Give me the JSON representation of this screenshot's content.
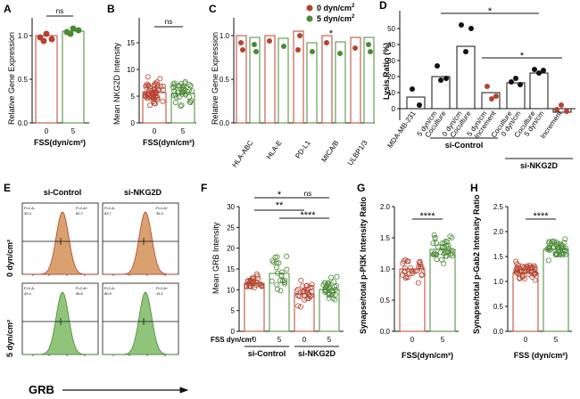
{
  "panels": [
    "A",
    "B",
    "C",
    "D",
    "E",
    "F",
    "G",
    "H"
  ],
  "colors": {
    "red": "#b5432f",
    "green": "#4a8a35",
    "orange": "#d9a070",
    "lightgreen": "#8fc47a"
  },
  "chart_data": [
    {
      "id": "A",
      "type": "bar",
      "categories": [
        "0",
        "5"
      ],
      "ylabel": "Relative Gene Expression",
      "xlabel": "FSS(dyn/cm²)",
      "values": [
        1.0,
        1.05
      ],
      "errors": [
        0.04,
        0.03
      ],
      "ylim": [
        0,
        1.2
      ],
      "yticks": [
        "0.0",
        "0.5",
        "1.0"
      ],
      "points": [
        [
          0.96,
          1.0,
          1.03,
          0.98
        ],
        [
          1.03,
          1.07,
          1.05,
          1.08
        ]
      ],
      "annotation": "ns"
    },
    {
      "id": "B",
      "type": "bar",
      "categories": [
        "0",
        "5"
      ],
      "ylabel": "Mean NKG2D Intensity",
      "xlabel": "FSS(dyn/cm²)",
      "values": [
        5.6,
        5.5
      ],
      "errors": [
        0.3,
        0.3
      ],
      "ylim": [
        0,
        16
      ],
      "yticks": [
        "0",
        "5",
        "10",
        "15"
      ],
      "annotation": "ns"
    },
    {
      "id": "C",
      "type": "bar",
      "categories": [
        "HLA-ABC",
        "HLA-E",
        "PD-L1",
        "MICA/B",
        "ULBP1/3"
      ],
      "ylabel": "Relative Gene Expression",
      "series": [
        {
          "name": "0 dyn/cm²",
          "values": [
            1.0,
            1.0,
            1.05,
            1.0,
            0.98
          ]
        },
        {
          "name": "5 dyn/cm²",
          "values": [
            0.98,
            0.97,
            0.92,
            0.93,
            0.98
          ]
        }
      ],
      "ylim": [
        0,
        1.2
      ],
      "yticks": [
        "0.0",
        "0.5",
        "1.0"
      ],
      "legend": [
        "0 dyn/cm",
        "5 dyn/cm"
      ],
      "annotation": "*"
    },
    {
      "id": "D",
      "type": "bar",
      "ylabel": "Lysis Ratio (%)",
      "ylim": [
        -10,
        60
      ],
      "yticks": [
        "0",
        "10",
        "20",
        "30",
        "40",
        "50"
      ],
      "categories": [
        "MDA-MB-231",
        "Coculture 5 dyn/cm2",
        "Coculture 0 dyn/cm2",
        "Increment",
        "Coculture 5 dyn/cm2",
        "Coculture 0 dyn/cm2",
        "Increment"
      ],
      "xticks": [
        "MDA-MB-231",
        "5 dyn/cm",
        "Coculture",
        "0 dyn/cm",
        "Coculture",
        "5 dyn/cm",
        "Increment",
        "Coculture",
        "0 dyn/cm",
        "Coculture",
        "5 dyn/cm",
        "Increment"
      ],
      "values": [
        7,
        20,
        39,
        10,
        16,
        22,
        -2
      ],
      "errors": [
        5,
        4,
        6,
        4,
        2,
        2,
        1
      ],
      "groups": [
        "si-Control",
        "si-NKG2D"
      ],
      "annotation": [
        "*",
        "*"
      ]
    },
    {
      "id": "E",
      "type": "histogram",
      "col_titles": [
        "si-Control",
        "si-NKG2D"
      ],
      "row_titles": [
        "0 dyn/cm²",
        "5 dyn/cm²"
      ],
      "xlabel": "GRB",
      "gates": [
        [
          "FL2-A-",
          "FL2-A+",
          "39.3",
          "60.7"
        ],
        [
          "FL2-A-",
          "FL2-A+",
          "63.7",
          "36.3"
        ],
        [
          "FL2-A-",
          "FL2-A+",
          "43.4",
          "56.6"
        ],
        [
          "FL2-A-",
          "FL2-A+",
          "80.9",
          "19.1"
        ]
      ]
    },
    {
      "id": "F",
      "type": "bar",
      "categories": [
        "0",
        "5",
        "0",
        "5"
      ],
      "ylabel": "Mean GRB Intensity",
      "groups": [
        "si-Control",
        "si-NKG2D"
      ],
      "xunit": "FSS dyn/cm²",
      "values": [
        11.5,
        13.9,
        8.9,
        10.0
      ],
      "errors": [
        0.4,
        1.0,
        0.5,
        0.5
      ],
      "ylim": [
        0,
        30
      ],
      "yticks": [
        "0",
        "5",
        "10",
        "15",
        "20",
        "25",
        "30"
      ],
      "annotations": [
        "**",
        "*",
        "ns",
        "****"
      ]
    },
    {
      "id": "G",
      "type": "bar",
      "categories": [
        "0",
        "5"
      ],
      "ylabel": "Synapse/total p-PI3K Intensity Ratio",
      "xlabel": "FSS(dyn/cm²)",
      "values": [
        1.0,
        1.32
      ],
      "errors": [
        0.05,
        0.06
      ],
      "ylim": [
        0,
        2.0
      ],
      "yticks": [
        "0.0",
        "0.5",
        "1.0",
        "1.5",
        "2.0"
      ],
      "annotation": "****"
    },
    {
      "id": "H",
      "type": "bar",
      "categories": [
        "0",
        "5"
      ],
      "ylabel": "Synapse/total p-Gab2 Intensity Ratio",
      "xlabel": "FSS (dyn/cm²)",
      "values": [
        1.18,
        1.65
      ],
      "errors": [
        0.04,
        0.05
      ],
      "ylim": [
        0,
        2.5
      ],
      "yticks": [
        "0.0",
        "0.5",
        "1.0",
        "1.5",
        "2.0",
        "2.5"
      ],
      "annotation": "****"
    }
  ]
}
